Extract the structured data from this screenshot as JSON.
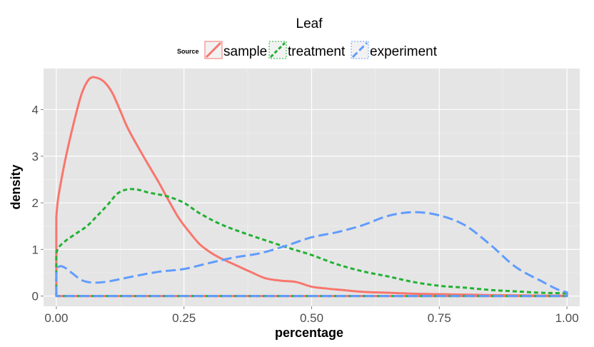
{
  "chart_data": {
    "type": "line",
    "title": "Leaf",
    "xlabel": "percentage",
    "ylabel": "density",
    "xlim": [
      -0.025,
      1.025
    ],
    "ylim": [
      -0.22,
      4.88
    ],
    "x_ticks": [
      0,
      0.25,
      0.5,
      0.75,
      1
    ],
    "x_tick_labels": [
      "0.00",
      "0.25",
      "0.50",
      "0.75",
      "1.00"
    ],
    "y_ticks": [
      0,
      1,
      2,
      3,
      4
    ],
    "y_tick_labels": [
      "0",
      "1",
      "2",
      "3",
      "4"
    ],
    "grid": true,
    "legend": {
      "title": "Source",
      "position": "top"
    },
    "series": [
      {
        "name": "sample",
        "color": "#f8766d",
        "dash": "solid",
        "points": [
          [
            0,
            1.68
          ],
          [
            0.003,
            2.05
          ],
          [
            0.01,
            2.5
          ],
          [
            0.02,
            3.05
          ],
          [
            0.035,
            3.75
          ],
          [
            0.05,
            4.35
          ],
          [
            0.065,
            4.66
          ],
          [
            0.08,
            4.68
          ],
          [
            0.095,
            4.58
          ],
          [
            0.11,
            4.35
          ],
          [
            0.125,
            3.98
          ],
          [
            0.14,
            3.6
          ],
          [
            0.16,
            3.2
          ],
          [
            0.18,
            2.82
          ],
          [
            0.2,
            2.45
          ],
          [
            0.22,
            2.05
          ],
          [
            0.24,
            1.67
          ],
          [
            0.26,
            1.38
          ],
          [
            0.28,
            1.12
          ],
          [
            0.3,
            0.95
          ],
          [
            0.32,
            0.82
          ],
          [
            0.35,
            0.67
          ],
          [
            0.38,
            0.52
          ],
          [
            0.41,
            0.38
          ],
          [
            0.44,
            0.33
          ],
          [
            0.47,
            0.3
          ],
          [
            0.5,
            0.2
          ],
          [
            0.53,
            0.16
          ],
          [
            0.56,
            0.13
          ],
          [
            0.6,
            0.09
          ],
          [
            0.65,
            0.07
          ],
          [
            0.7,
            0.05
          ],
          [
            0.75,
            0.04
          ],
          [
            0.8,
            0.03
          ],
          [
            0.85,
            0.02
          ],
          [
            0.9,
            0.015
          ],
          [
            0.95,
            0.01
          ],
          [
            1,
            0.01
          ]
        ]
      },
      {
        "name": "treatment",
        "color": "#22b134",
        "dash": "short",
        "points": [
          [
            0,
            0.92
          ],
          [
            0.005,
            1.05
          ],
          [
            0.02,
            1.2
          ],
          [
            0.04,
            1.35
          ],
          [
            0.06,
            1.5
          ],
          [
            0.08,
            1.72
          ],
          [
            0.1,
            1.95
          ],
          [
            0.12,
            2.2
          ],
          [
            0.14,
            2.29
          ],
          [
            0.16,
            2.28
          ],
          [
            0.18,
            2.22
          ],
          [
            0.2,
            2.18
          ],
          [
            0.22,
            2.13
          ],
          [
            0.25,
            2.0
          ],
          [
            0.28,
            1.78
          ],
          [
            0.32,
            1.55
          ],
          [
            0.36,
            1.38
          ],
          [
            0.4,
            1.23
          ],
          [
            0.45,
            1.05
          ],
          [
            0.5,
            0.88
          ],
          [
            0.55,
            0.68
          ],
          [
            0.6,
            0.53
          ],
          [
            0.65,
            0.42
          ],
          [
            0.7,
            0.3
          ],
          [
            0.75,
            0.22
          ],
          [
            0.8,
            0.18
          ],
          [
            0.85,
            0.13
          ],
          [
            0.9,
            0.1
          ],
          [
            0.95,
            0.07
          ],
          [
            1,
            0.06
          ]
        ]
      },
      {
        "name": "experiment",
        "color": "#619cff",
        "dash": "long",
        "points": [
          [
            0,
            0.48
          ],
          [
            0.005,
            0.63
          ],
          [
            0.015,
            0.62
          ],
          [
            0.03,
            0.5
          ],
          [
            0.05,
            0.34
          ],
          [
            0.07,
            0.29
          ],
          [
            0.1,
            0.31
          ],
          [
            0.15,
            0.42
          ],
          [
            0.2,
            0.52
          ],
          [
            0.25,
            0.58
          ],
          [
            0.3,
            0.71
          ],
          [
            0.35,
            0.83
          ],
          [
            0.4,
            0.92
          ],
          [
            0.45,
            1.08
          ],
          [
            0.5,
            1.26
          ],
          [
            0.55,
            1.37
          ],
          [
            0.6,
            1.52
          ],
          [
            0.65,
            1.72
          ],
          [
            0.7,
            1.8
          ],
          [
            0.75,
            1.73
          ],
          [
            0.8,
            1.52
          ],
          [
            0.85,
            1.1
          ],
          [
            0.9,
            0.62
          ],
          [
            0.95,
            0.32
          ],
          [
            0.98,
            0.15
          ],
          [
            1,
            0.08
          ]
        ]
      }
    ]
  }
}
